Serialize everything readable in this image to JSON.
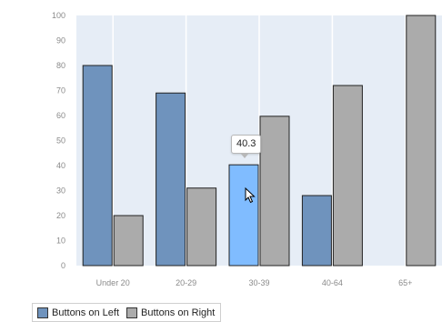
{
  "chart_data": {
    "type": "bar",
    "categories": [
      "Under 20",
      "20-29",
      "30-39",
      "40-64",
      "65+"
    ],
    "series": [
      {
        "name": "Buttons on Left",
        "values": [
          80,
          69,
          40.3,
          28,
          null
        ],
        "color": "#6f93bd"
      },
      {
        "name": "Buttons on Right",
        "values": [
          20,
          31,
          59.7,
          72,
          100
        ],
        "color": "#ababab"
      }
    ],
    "ylim": [
      0,
      100
    ],
    "yticks": [
      "0",
      "10",
      "20",
      "30",
      "40",
      "50",
      "60",
      "70",
      "80",
      "90",
      "100"
    ],
    "highlight_color": "#80bcff",
    "plot_background": "#e6edf6",
    "grid": true,
    "legend": "bottom-left",
    "tooltip": {
      "text": "40.3",
      "series": 0,
      "category": 2
    }
  }
}
